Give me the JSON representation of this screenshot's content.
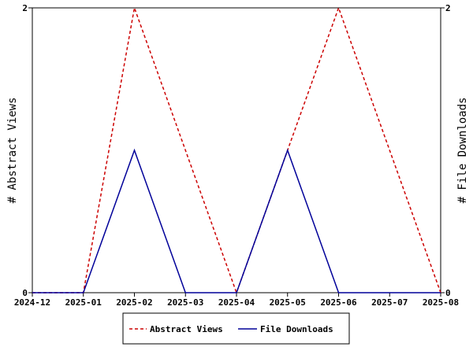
{
  "chart_data": {
    "type": "line",
    "categories": [
      "2024-12",
      "2025-01",
      "2025-02",
      "2025-03",
      "2025-04",
      "2025-05",
      "2025-06",
      "2025-07",
      "2025-08"
    ],
    "y_left": {
      "label": "# Abstract Views",
      "ylim": [
        0,
        2
      ],
      "ticks": [
        "0",
        "2"
      ]
    },
    "y_right": {
      "label": "# File Downloads",
      "ylim": [
        0,
        2
      ],
      "ticks": [
        "0",
        "2"
      ]
    },
    "series": [
      {
        "name": "Abstract Views",
        "axis": "left",
        "color": "#cc0000",
        "style": "dashed",
        "points": [
          {
            "x": "2024-12",
            "y": 0
          },
          {
            "x": "2025-01",
            "y": 0
          },
          {
            "x": "2025-02",
            "y": 2
          },
          {
            "x": "2025-04",
            "y": 0
          },
          {
            "x": "2025-05",
            "y": 1
          },
          {
            "x": "2025-06",
            "y": 2
          },
          {
            "x": "2025-08",
            "y": 0
          }
        ]
      },
      {
        "name": "File Downloads",
        "axis": "right",
        "color": "#000099",
        "style": "solid",
        "points": [
          {
            "x": "2024-12",
            "y": 0
          },
          {
            "x": "2025-01",
            "y": 0
          },
          {
            "x": "2025-02",
            "y": 1
          },
          {
            "x": "2025-03",
            "y": 0
          },
          {
            "x": "2025-04",
            "y": 0
          },
          {
            "x": "2025-05",
            "y": 1
          },
          {
            "x": "2025-06",
            "y": 0
          },
          {
            "x": "2025-07",
            "y": 0
          },
          {
            "x": "2025-08",
            "y": 0
          }
        ]
      }
    ],
    "grid": false,
    "legend_position": "bottom-center"
  }
}
